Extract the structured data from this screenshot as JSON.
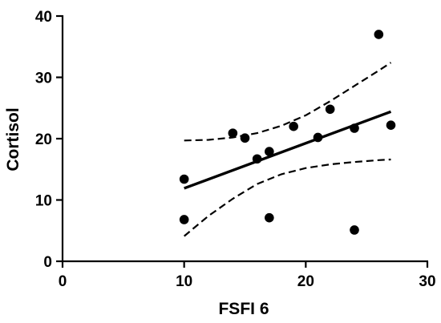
{
  "chart_data": {
    "type": "scatter",
    "title": "",
    "xlabel": "FSFI 6",
    "ylabel": "Cortisol",
    "xlim": [
      0,
      30
    ],
    "ylim": [
      0,
      40
    ],
    "xticks": [
      0,
      10,
      20,
      30
    ],
    "yticks": [
      0,
      10,
      20,
      30,
      40
    ],
    "xtick_labels": [
      "0",
      "10",
      "20",
      "30"
    ],
    "ytick_labels": [
      "0",
      "10",
      "20",
      "30",
      "40"
    ],
    "grid": false,
    "legend": "none",
    "points": [
      {
        "x": 10,
        "y": 13.4
      },
      {
        "x": 10,
        "y": 6.8
      },
      {
        "x": 14,
        "y": 20.9
      },
      {
        "x": 15,
        "y": 20.1
      },
      {
        "x": 16,
        "y": 16.7
      },
      {
        "x": 17,
        "y": 17.9
      },
      {
        "x": 17,
        "y": 7.1
      },
      {
        "x": 19,
        "y": 22.0
      },
      {
        "x": 21,
        "y": 20.2
      },
      {
        "x": 22,
        "y": 24.8
      },
      {
        "x": 24,
        "y": 21.7
      },
      {
        "x": 24,
        "y": 5.1
      },
      {
        "x": 26,
        "y": 37.0
      },
      {
        "x": 27,
        "y": 22.2
      }
    ],
    "regression": {
      "x": [
        10,
        27
      ],
      "y": [
        11.9,
        24.4
      ]
    },
    "ci_upper": {
      "x": [
        10,
        12,
        14,
        16,
        18,
        20,
        22,
        24,
        26,
        27
      ],
      "y": [
        19.7,
        19.8,
        20.2,
        20.9,
        22.1,
        23.8,
        26.1,
        28.6,
        31.1,
        32.4
      ]
    },
    "ci_lower": {
      "x": [
        10,
        12,
        14,
        16,
        18,
        20,
        22,
        24,
        26,
        27
      ],
      "y": [
        4.1,
        7.4,
        10.2,
        12.6,
        14.2,
        15.2,
        15.8,
        16.2,
        16.5,
        16.6
      ]
    },
    "colors": {
      "marks": "#000000"
    }
  }
}
